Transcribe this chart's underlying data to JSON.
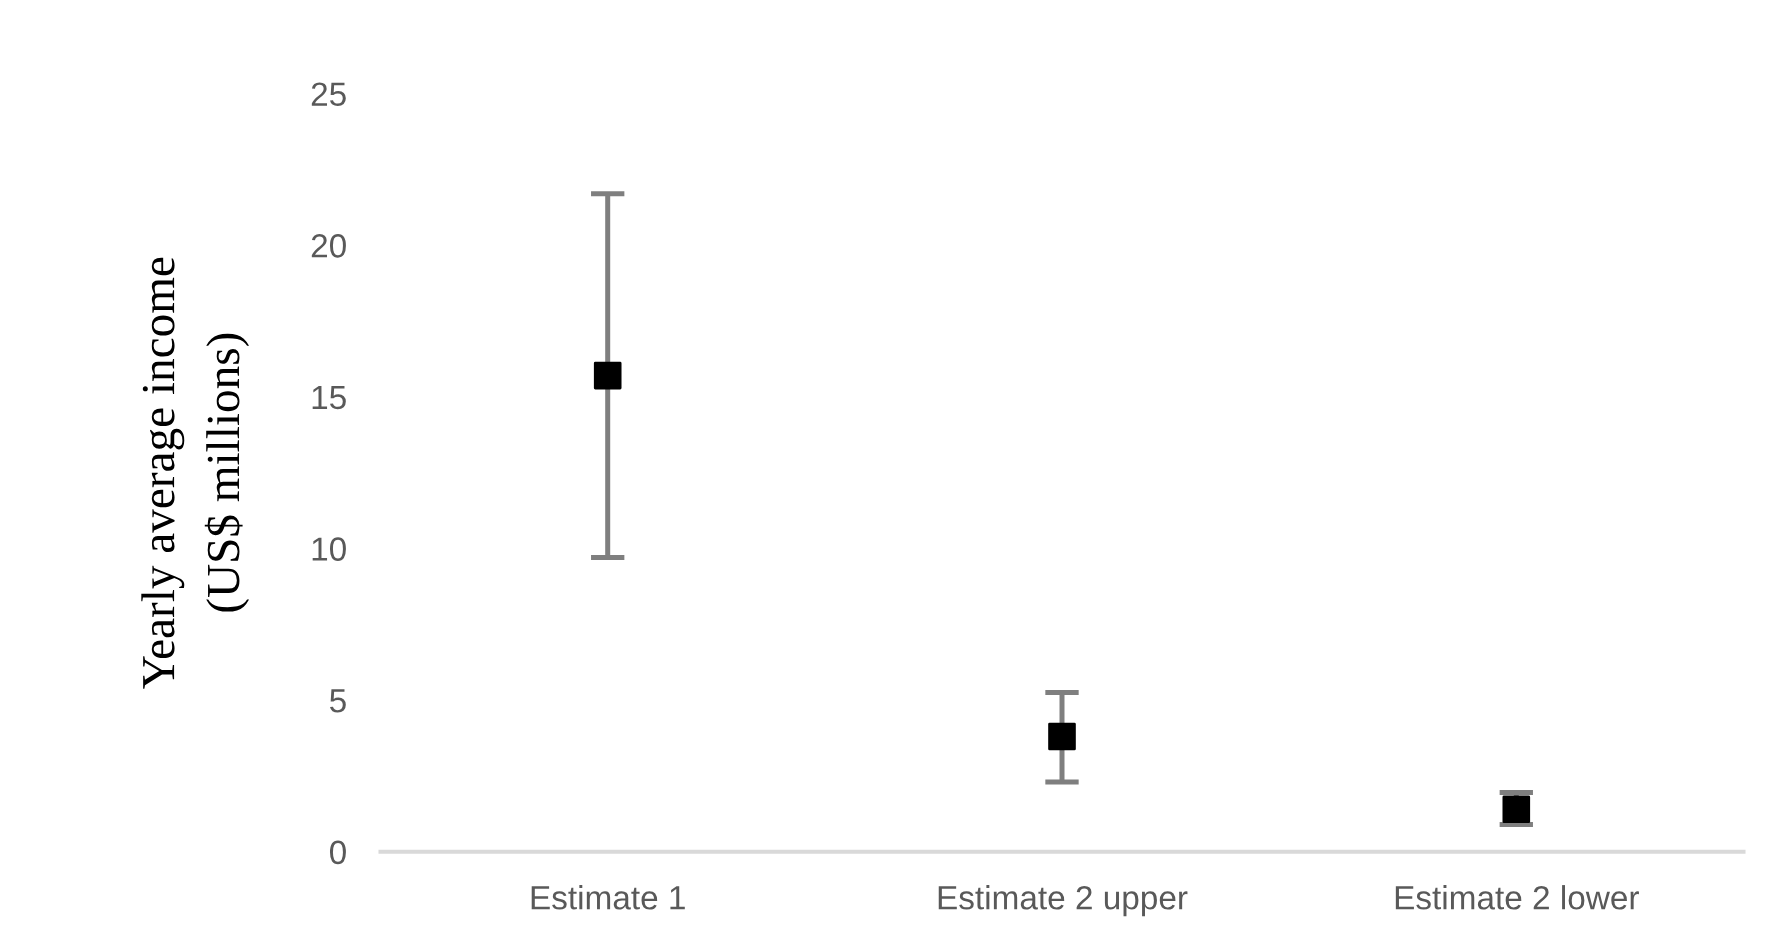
{
  "chart_data": {
    "type": "scatter",
    "ylabel": "Yearly average income\n(US$ millions)",
    "categories": [
      "Estimate 1",
      "Estimate 2 upper",
      "Estimate 2 lower"
    ],
    "values": [
      15.7,
      3.8,
      1.4
    ],
    "errors": [
      [
        9.7,
        21.7
      ],
      [
        2.3,
        5.25
      ],
      [
        0.9,
        1.95
      ]
    ],
    "color": "#000000",
    "marker": "square",
    "ylim": [
      0,
      25
    ],
    "yticks": [
      0,
      5,
      10,
      15,
      20,
      25
    ],
    "grid": false,
    "legend": false
  }
}
